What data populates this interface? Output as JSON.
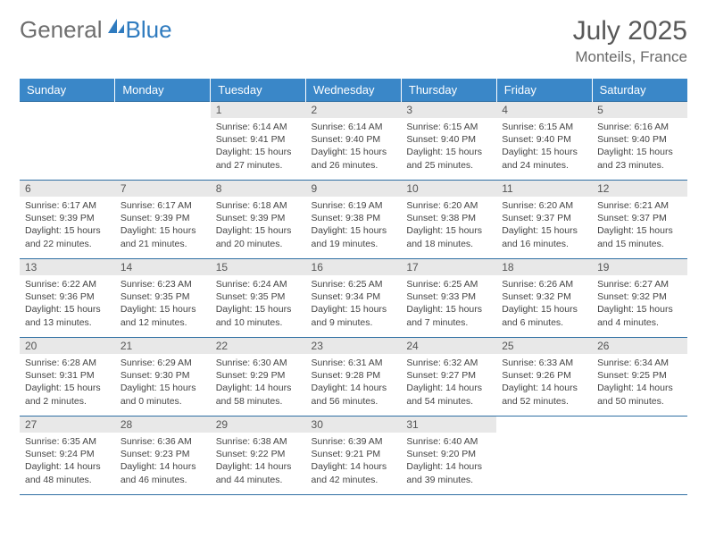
{
  "logo": {
    "part1": "General",
    "part2": "Blue"
  },
  "title": "July 2025",
  "location": "Monteils, France",
  "colors": {
    "header_bg": "#3a87c8",
    "header_text": "#ffffff",
    "row_border": "#2f6fa3",
    "daynum_bg": "#e8e8e8",
    "text": "#444444",
    "logo_gray": "#6e6e6e",
    "logo_blue": "#2f7bbf"
  },
  "weekdays": [
    "Sunday",
    "Monday",
    "Tuesday",
    "Wednesday",
    "Thursday",
    "Friday",
    "Saturday"
  ],
  "weeks": [
    [
      null,
      null,
      {
        "n": "1",
        "sr": "Sunrise: 6:14 AM",
        "ss": "Sunset: 9:41 PM",
        "d1": "Daylight: 15 hours",
        "d2": "and 27 minutes."
      },
      {
        "n": "2",
        "sr": "Sunrise: 6:14 AM",
        "ss": "Sunset: 9:40 PM",
        "d1": "Daylight: 15 hours",
        "d2": "and 26 minutes."
      },
      {
        "n": "3",
        "sr": "Sunrise: 6:15 AM",
        "ss": "Sunset: 9:40 PM",
        "d1": "Daylight: 15 hours",
        "d2": "and 25 minutes."
      },
      {
        "n": "4",
        "sr": "Sunrise: 6:15 AM",
        "ss": "Sunset: 9:40 PM",
        "d1": "Daylight: 15 hours",
        "d2": "and 24 minutes."
      },
      {
        "n": "5",
        "sr": "Sunrise: 6:16 AM",
        "ss": "Sunset: 9:40 PM",
        "d1": "Daylight: 15 hours",
        "d2": "and 23 minutes."
      }
    ],
    [
      {
        "n": "6",
        "sr": "Sunrise: 6:17 AM",
        "ss": "Sunset: 9:39 PM",
        "d1": "Daylight: 15 hours",
        "d2": "and 22 minutes."
      },
      {
        "n": "7",
        "sr": "Sunrise: 6:17 AM",
        "ss": "Sunset: 9:39 PM",
        "d1": "Daylight: 15 hours",
        "d2": "and 21 minutes."
      },
      {
        "n": "8",
        "sr": "Sunrise: 6:18 AM",
        "ss": "Sunset: 9:39 PM",
        "d1": "Daylight: 15 hours",
        "d2": "and 20 minutes."
      },
      {
        "n": "9",
        "sr": "Sunrise: 6:19 AM",
        "ss": "Sunset: 9:38 PM",
        "d1": "Daylight: 15 hours",
        "d2": "and 19 minutes."
      },
      {
        "n": "10",
        "sr": "Sunrise: 6:20 AM",
        "ss": "Sunset: 9:38 PM",
        "d1": "Daylight: 15 hours",
        "d2": "and 18 minutes."
      },
      {
        "n": "11",
        "sr": "Sunrise: 6:20 AM",
        "ss": "Sunset: 9:37 PM",
        "d1": "Daylight: 15 hours",
        "d2": "and 16 minutes."
      },
      {
        "n": "12",
        "sr": "Sunrise: 6:21 AM",
        "ss": "Sunset: 9:37 PM",
        "d1": "Daylight: 15 hours",
        "d2": "and 15 minutes."
      }
    ],
    [
      {
        "n": "13",
        "sr": "Sunrise: 6:22 AM",
        "ss": "Sunset: 9:36 PM",
        "d1": "Daylight: 15 hours",
        "d2": "and 13 minutes."
      },
      {
        "n": "14",
        "sr": "Sunrise: 6:23 AM",
        "ss": "Sunset: 9:35 PM",
        "d1": "Daylight: 15 hours",
        "d2": "and 12 minutes."
      },
      {
        "n": "15",
        "sr": "Sunrise: 6:24 AM",
        "ss": "Sunset: 9:35 PM",
        "d1": "Daylight: 15 hours",
        "d2": "and 10 minutes."
      },
      {
        "n": "16",
        "sr": "Sunrise: 6:25 AM",
        "ss": "Sunset: 9:34 PM",
        "d1": "Daylight: 15 hours",
        "d2": "and 9 minutes."
      },
      {
        "n": "17",
        "sr": "Sunrise: 6:25 AM",
        "ss": "Sunset: 9:33 PM",
        "d1": "Daylight: 15 hours",
        "d2": "and 7 minutes."
      },
      {
        "n": "18",
        "sr": "Sunrise: 6:26 AM",
        "ss": "Sunset: 9:32 PM",
        "d1": "Daylight: 15 hours",
        "d2": "and 6 minutes."
      },
      {
        "n": "19",
        "sr": "Sunrise: 6:27 AM",
        "ss": "Sunset: 9:32 PM",
        "d1": "Daylight: 15 hours",
        "d2": "and 4 minutes."
      }
    ],
    [
      {
        "n": "20",
        "sr": "Sunrise: 6:28 AM",
        "ss": "Sunset: 9:31 PM",
        "d1": "Daylight: 15 hours",
        "d2": "and 2 minutes."
      },
      {
        "n": "21",
        "sr": "Sunrise: 6:29 AM",
        "ss": "Sunset: 9:30 PM",
        "d1": "Daylight: 15 hours",
        "d2": "and 0 minutes."
      },
      {
        "n": "22",
        "sr": "Sunrise: 6:30 AM",
        "ss": "Sunset: 9:29 PM",
        "d1": "Daylight: 14 hours",
        "d2": "and 58 minutes."
      },
      {
        "n": "23",
        "sr": "Sunrise: 6:31 AM",
        "ss": "Sunset: 9:28 PM",
        "d1": "Daylight: 14 hours",
        "d2": "and 56 minutes."
      },
      {
        "n": "24",
        "sr": "Sunrise: 6:32 AM",
        "ss": "Sunset: 9:27 PM",
        "d1": "Daylight: 14 hours",
        "d2": "and 54 minutes."
      },
      {
        "n": "25",
        "sr": "Sunrise: 6:33 AM",
        "ss": "Sunset: 9:26 PM",
        "d1": "Daylight: 14 hours",
        "d2": "and 52 minutes."
      },
      {
        "n": "26",
        "sr": "Sunrise: 6:34 AM",
        "ss": "Sunset: 9:25 PM",
        "d1": "Daylight: 14 hours",
        "d2": "and 50 minutes."
      }
    ],
    [
      {
        "n": "27",
        "sr": "Sunrise: 6:35 AM",
        "ss": "Sunset: 9:24 PM",
        "d1": "Daylight: 14 hours",
        "d2": "and 48 minutes."
      },
      {
        "n": "28",
        "sr": "Sunrise: 6:36 AM",
        "ss": "Sunset: 9:23 PM",
        "d1": "Daylight: 14 hours",
        "d2": "and 46 minutes."
      },
      {
        "n": "29",
        "sr": "Sunrise: 6:38 AM",
        "ss": "Sunset: 9:22 PM",
        "d1": "Daylight: 14 hours",
        "d2": "and 44 minutes."
      },
      {
        "n": "30",
        "sr": "Sunrise: 6:39 AM",
        "ss": "Sunset: 9:21 PM",
        "d1": "Daylight: 14 hours",
        "d2": "and 42 minutes."
      },
      {
        "n": "31",
        "sr": "Sunrise: 6:40 AM",
        "ss": "Sunset: 9:20 PM",
        "d1": "Daylight: 14 hours",
        "d2": "and 39 minutes."
      },
      null,
      null
    ]
  ]
}
